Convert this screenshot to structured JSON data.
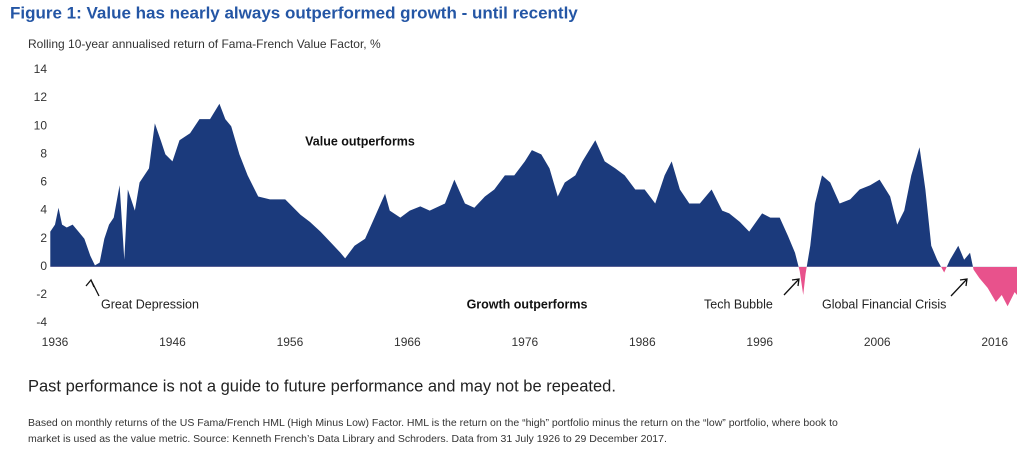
{
  "chart_data": {
    "type": "area",
    "title": "Figure 1: Value has nearly always outperformed growth - until recently",
    "subtitle": "Rolling 10-year annualised return of Fama-French Value Factor, %",
    "x": [
      1935.6,
      1936.0,
      1936.3,
      1936.6,
      1937.0,
      1937.5,
      1938.0,
      1938.5,
      1939.0,
      1939.4,
      1939.8,
      1940.2,
      1940.6,
      1941.0,
      1941.5,
      1941.9,
      1942.2,
      1942.8,
      1943.2,
      1944.0,
      1944.5,
      1945.0,
      1945.4,
      1946.0,
      1946.6,
      1947.5,
      1948.3,
      1949.2,
      1950.0,
      1950.5,
      1951.0,
      1951.7,
      1952.4,
      1953.3,
      1954.3,
      1955.6,
      1956.9,
      1957.7,
      1958.6,
      1959.4,
      1960.3,
      1960.7,
      1961.5,
      1962.4,
      1963.2,
      1964.1,
      1964.5,
      1965.4,
      1966.2,
      1967.1,
      1967.9,
      1969.2,
      1970.0,
      1970.9,
      1971.7,
      1972.6,
      1973.4,
      1974.3,
      1975.1,
      1976.0,
      1976.6,
      1977.4,
      1978.1,
      1978.8,
      1979.4,
      1980.3,
      1980.9,
      1982.0,
      1982.8,
      1983.7,
      1984.5,
      1985.4,
      1986.2,
      1987.1,
      1987.9,
      1988.5,
      1989.2,
      1990.0,
      1990.9,
      1991.9,
      1992.8,
      1993.4,
      1994.3,
      1995.1,
      1996.2,
      1996.9,
      1997.7,
      1998.4,
      1999.0,
      1999.4,
      1999.7,
      1999.9,
      2000.3,
      2000.7,
      2001.3,
      2002.0,
      2002.8,
      2003.7,
      2004.5,
      2005.4,
      2006.2,
      2007.1,
      2007.7,
      2008.3,
      2008.9,
      2009.6,
      2010.1,
      2010.6,
      2011.1,
      2011.7,
      2012.2,
      2012.9,
      2013.4,
      2013.9,
      2014.2,
      2014.7,
      2015.4,
      2016.1,
      2016.6,
      2017.1,
      2017.7,
      2017.9
    ],
    "values": [
      2.5,
      3.0,
      4.2,
      3.0,
      2.8,
      3.0,
      2.5,
      2.0,
      0.8,
      0.1,
      0.3,
      2.0,
      3.0,
      3.5,
      5.8,
      0.5,
      5.5,
      4.0,
      6.0,
      7.0,
      10.2,
      9.0,
      8.0,
      7.5,
      9.0,
      9.5,
      10.5,
      10.5,
      11.6,
      10.5,
      10.0,
      8.0,
      6.5,
      5.0,
      4.8,
      4.8,
      3.7,
      3.2,
      2.5,
      1.8,
      1.0,
      0.6,
      1.5,
      2.0,
      3.5,
      5.2,
      4.0,
      3.5,
      4.0,
      4.3,
      4.0,
      4.5,
      6.2,
      4.5,
      4.2,
      5.0,
      5.5,
      6.5,
      6.5,
      7.5,
      8.3,
      8.0,
      7.0,
      5.0,
      6.0,
      6.5,
      7.5,
      9.0,
      7.5,
      7.0,
      6.5,
      5.5,
      5.5,
      4.5,
      6.5,
      7.5,
      5.5,
      4.5,
      4.5,
      5.5,
      4.0,
      3.8,
      3.2,
      2.5,
      3.8,
      3.5,
      3.5,
      2.2,
      1.0,
      -0.3,
      -2.0,
      -0.5,
      1.5,
      4.5,
      6.5,
      6.0,
      4.5,
      4.8,
      5.5,
      5.8,
      6.2,
      5.0,
      3.0,
      4.0,
      6.5,
      8.5,
      5.5,
      1.5,
      0.5,
      -0.4,
      0.5,
      1.5,
      0.5,
      1.0,
      -0.2,
      -0.8,
      -1.5,
      -2.5,
      -2.0,
      -2.8,
      -1.8,
      -2.0
    ],
    "color": "#1b3a7c",
    "negative_color": "#e8528c",
    "xlim": [
      1935.6,
      2017.9
    ],
    "xticks": [
      1936,
      1946,
      1956,
      1966,
      1976,
      1986,
      1996,
      2006,
      2016
    ],
    "ylim": [
      -4.6,
      14.6
    ],
    "yticks": [
      -4,
      -2,
      0,
      2,
      4,
      6,
      8,
      10,
      12,
      14
    ],
    "annotations": [
      "Value outperforms",
      "Growth outperforms",
      "Great Depression",
      "Tech Bubble",
      "Global Financial Crisis"
    ],
    "disclaimer": "Past performance is not a guide to future performance and may not be repeated.",
    "notes": [
      "Based on monthly returns of the US Fama/French HML (High Minus Low) Factor. HML is the return on the “high” portfolio minus the return on the “low” portfolio, where book to",
      "market is used as the value metric. Source: Kenneth French’s Data Library and Schroders. Data from 31 July 1926 to 29 December 2017."
    ]
  }
}
